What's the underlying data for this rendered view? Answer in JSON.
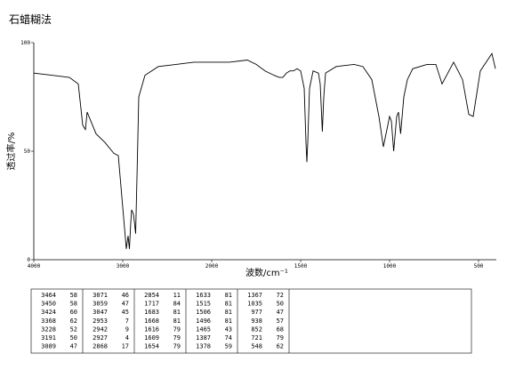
{
  "chart_data": {
    "type": "line",
    "title": "石蜡糊法",
    "xlabel": "波数/cm⁻¹",
    "ylabel": "透过率/%",
    "xlim": [
      4000,
      400
    ],
    "ylim": [
      0,
      100
    ],
    "xticks": [
      4000,
      3000,
      2000,
      1500,
      1000,
      500
    ],
    "yticks": [
      0,
      50,
      100
    ],
    "color": "#000000",
    "x": [
      4000,
      3800,
      3600,
      3500,
      3450,
      3420,
      3400,
      3300,
      3200,
      3100,
      3050,
      2960,
      2940,
      2925,
      2910,
      2900,
      2880,
      2868,
      2855,
      2840,
      2820,
      2750,
      2600,
      2400,
      2200,
      2000,
      1900,
      1800,
      1750,
      1700,
      1650,
      1620,
      1600,
      1580,
      1560,
      1540,
      1520,
      1500,
      1480,
      1470,
      1465,
      1460,
      1450,
      1430,
      1400,
      1390,
      1378,
      1370,
      1360,
      1300,
      1200,
      1150,
      1100,
      1060,
      1035,
      1020,
      1000,
      990,
      977,
      960,
      950,
      938,
      920,
      900,
      870,
      790,
      740,
      705,
      640,
      590,
      555,
      530,
      490,
      425,
      405
    ],
    "values": [
      86,
      85,
      84,
      81,
      62,
      60,
      68,
      58,
      54,
      49,
      48,
      5,
      11,
      5,
      17,
      23,
      21,
      17,
      12,
      38,
      75,
      85,
      89,
      90,
      91,
      91,
      91,
      92,
      90,
      87,
      85,
      84,
      84,
      86,
      87,
      87,
      88,
      87,
      79,
      54,
      45,
      54,
      79,
      87,
      86,
      81,
      59,
      75,
      86,
      89,
      90,
      89,
      83,
      66,
      52,
      58,
      66,
      64,
      50,
      66,
      68,
      58,
      75,
      83,
      88,
      90,
      90,
      81,
      91,
      83,
      67,
      66,
      87,
      95,
      88
    ]
  },
  "peak_table": {
    "columns": [
      [
        [
          3464,
          58
        ],
        [
          3450,
          58
        ],
        [
          3424,
          60
        ],
        [
          3368,
          62
        ],
        [
          3228,
          52
        ],
        [
          3191,
          50
        ],
        [
          3089,
          47
        ]
      ],
      [
        [
          3071,
          46
        ],
        [
          3059,
          47
        ],
        [
          3047,
          45
        ],
        [
          2953,
          7
        ],
        [
          2942,
          9
        ],
        [
          2927,
          4
        ],
        [
          2868,
          17
        ]
      ],
      [
        [
          2854,
          11
        ],
        [
          1717,
          84
        ],
        [
          1683,
          81
        ],
        [
          1668,
          81
        ],
        [
          1616,
          79
        ],
        [
          1609,
          79
        ],
        [
          1654,
          79
        ]
      ],
      [
        [
          1633,
          81
        ],
        [
          1515,
          81
        ],
        [
          1506,
          81
        ],
        [
          1496,
          81
        ],
        [
          1465,
          43
        ],
        [
          1387,
          74
        ],
        [
          1378,
          59
        ]
      ],
      [
        [
          1367,
          72
        ],
        [
          1035,
          50
        ],
        [
          977,
          47
        ],
        [
          938,
          57
        ],
        [
          852,
          68
        ],
        [
          721,
          79
        ],
        [
          548,
          62
        ]
      ]
    ]
  }
}
